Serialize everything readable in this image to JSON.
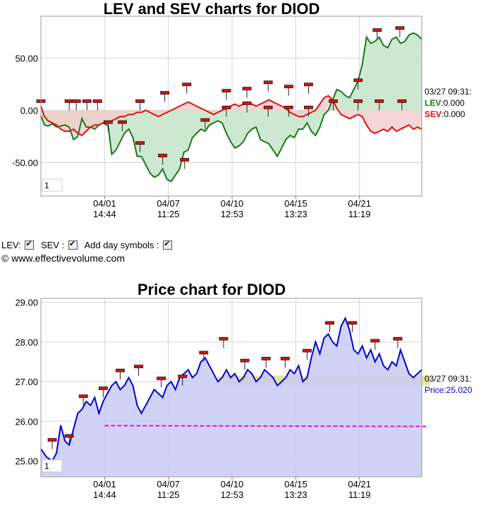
{
  "chart_data": [
    {
      "type": "line",
      "title": "LEV and SEV charts for DIOD",
      "ylim": [
        -82,
        90
      ],
      "y_ticks": [
        50,
        0,
        -50
      ],
      "y_tick_labels": [
        "50.00",
        "0.00",
        "-50.00"
      ],
      "x_ticks": [
        {
          "date": "04/01",
          "time": "14:44"
        },
        {
          "date": "04/07",
          "time": "11:25"
        },
        {
          "date": "04/10",
          "time": "12:53"
        },
        {
          "date": "04/15",
          "time": "13:23"
        },
        {
          "date": "04/21",
          "time": "11:19"
        }
      ],
      "zoom_label": "1",
      "series": [
        {
          "name": "LEV",
          "color": "#1a7a1a",
          "fill": "#c8e6cc",
          "x": [
            0,
            5,
            10,
            16,
            22,
            28,
            34,
            40,
            46,
            52,
            58,
            64,
            70,
            76,
            82,
            88,
            95,
            100,
            106,
            112,
            118,
            124,
            130,
            136,
            142,
            148,
            154,
            160,
            166,
            172,
            178,
            184,
            190,
            196,
            202,
            208,
            214,
            220,
            226,
            232,
            238,
            244,
            250,
            256,
            262,
            268,
            274,
            280,
            286,
            292,
            298,
            304,
            310,
            316,
            322,
            328,
            334,
            340,
            346,
            352,
            358,
            364,
            370,
            376,
            382,
            388,
            394,
            400,
            406,
            412,
            418,
            424,
            430,
            436,
            442,
            448,
            454,
            460,
            466,
            472,
            478,
            484,
            490,
            496,
            502,
            508,
            514,
            520,
            526,
            532,
            538
          ],
          "values": [
            -5,
            -14,
            -15,
            -13,
            -16,
            -15,
            -14,
            -16,
            -28,
            -25,
            -8,
            -16,
            -16,
            -18,
            -14,
            -12,
            -15,
            -42,
            -38,
            -30,
            -22,
            -18,
            -26,
            -44,
            -44,
            -52,
            -60,
            -64,
            -62,
            -56,
            -66,
            -68,
            -62,
            -56,
            -40,
            -38,
            -26,
            -22,
            -18,
            -20,
            -14,
            -12,
            -10,
            -12,
            -22,
            -30,
            -36,
            -34,
            -30,
            -22,
            -18,
            -16,
            -28,
            -30,
            -32,
            -38,
            -44,
            -36,
            -28,
            -24,
            -26,
            -18,
            -18,
            -12,
            -20,
            -24,
            -16,
            -4,
            0,
            10,
            20,
            18,
            14,
            12,
            20,
            28,
            44,
            70,
            64,
            66,
            70,
            62,
            60,
            68,
            70,
            64,
            66,
            72,
            74,
            72,
            68
          ]
        },
        {
          "name": "SEV",
          "color": "#e01010",
          "fill": "#f3cccc",
          "x": [
            0,
            5,
            10,
            16,
            22,
            28,
            34,
            40,
            46,
            52,
            58,
            64,
            70,
            76,
            82,
            88,
            95,
            100,
            106,
            112,
            118,
            124,
            130,
            136,
            142,
            148,
            154,
            160,
            166,
            172,
            178,
            184,
            190,
            196,
            202,
            208,
            214,
            220,
            226,
            232,
            238,
            244,
            250,
            256,
            262,
            268,
            274,
            280,
            286,
            292,
            298,
            304,
            310,
            316,
            322,
            328,
            334,
            340,
            346,
            352,
            358,
            364,
            370,
            376,
            382,
            388,
            394,
            400,
            406,
            412,
            418,
            424,
            430,
            436,
            442,
            448,
            454,
            460,
            466,
            472,
            478,
            484,
            490,
            496,
            502,
            508,
            514,
            520,
            526,
            532,
            538
          ],
          "values": [
            4,
            -6,
            -10,
            -12,
            -14,
            -18,
            -20,
            -20,
            -18,
            -22,
            -24,
            -20,
            -16,
            -14,
            -14,
            -12,
            -12,
            -10,
            -8,
            -6,
            -6,
            -4,
            -4,
            -2,
            -2,
            0,
            -2,
            -4,
            -6,
            -4,
            -2,
            0,
            2,
            4,
            6,
            8,
            6,
            4,
            2,
            0,
            -2,
            -4,
            -2,
            0,
            2,
            4,
            6,
            4,
            6,
            8,
            6,
            4,
            6,
            8,
            10,
            8,
            6,
            4,
            2,
            -2,
            -4,
            -6,
            -6,
            -4,
            -2,
            0,
            6,
            12,
            14,
            10,
            2,
            -4,
            -6,
            -8,
            -6,
            -4,
            -6,
            -14,
            -20,
            -22,
            -20,
            -18,
            -20,
            -16,
            -20,
            -18,
            -16,
            -14,
            -18,
            -16,
            -18
          ]
        }
      ],
      "day_markers_lev": [
        {
          "x": 0,
          "y": 0
        },
        {
          "x": 40,
          "y": 0
        },
        {
          "x": 65,
          "y": 0
        },
        {
          "x": 95,
          "y": -20
        },
        {
          "x": 115,
          "y": -20
        },
        {
          "x": 140,
          "y": -40
        },
        {
          "x": 172,
          "y": -52
        },
        {
          "x": 203,
          "y": -56
        },
        {
          "x": 232,
          "y": -18
        },
        {
          "x": 262,
          "y": -6
        },
        {
          "x": 291,
          "y": -2
        },
        {
          "x": 321,
          "y": -6
        },
        {
          "x": 350,
          "y": -6
        },
        {
          "x": 378,
          "y": -6
        },
        {
          "x": 448,
          "y": 20
        },
        {
          "x": 475,
          "y": 68
        },
        {
          "x": 507,
          "y": 70
        }
      ],
      "day_markers_sev": [
        {
          "x": 50,
          "y": 0
        },
        {
          "x": 80,
          "y": 0
        },
        {
          "x": 140,
          "y": 0
        },
        {
          "x": 175,
          "y": 8
        },
        {
          "x": 206,
          "y": 16
        },
        {
          "x": 262,
          "y": 10
        },
        {
          "x": 291,
          "y": 12
        },
        {
          "x": 321,
          "y": 18
        },
        {
          "x": 350,
          "y": 14
        },
        {
          "x": 378,
          "y": 16
        },
        {
          "x": 413,
          "y": 0
        },
        {
          "x": 448,
          "y": 0
        },
        {
          "x": 478,
          "y": 0
        },
        {
          "x": 510,
          "y": 0
        }
      ],
      "readout": {
        "timestamp": "03/27 09:31:",
        "lev_label": "LEV",
        "lev_value": ":0.000",
        "sev_label": "SEV",
        "sev_value": ":0.000"
      }
    },
    {
      "type": "line",
      "title": "Price chart for DIOD",
      "ylim": [
        24.6,
        29.1
      ],
      "y_ticks": [
        29,
        28,
        27,
        26,
        25
      ],
      "y_tick_labels": [
        "29.00",
        "28.00",
        "27.00",
        "26.00",
        "25.00"
      ],
      "x_ticks": [
        {
          "date": "04/01",
          "time": "14:44"
        },
        {
          "date": "04/07",
          "time": "11:25"
        },
        {
          "date": "04/10",
          "time": "12:53"
        },
        {
          "date": "04/15",
          "time": "13:23"
        },
        {
          "date": "04/21",
          "time": "11:19"
        }
      ],
      "zoom_label": "1",
      "series": [
        {
          "name": "Price",
          "color": "#0000dd",
          "fill": "#c9cbf5",
          "x": [
            0,
            8,
            16,
            22,
            28,
            34,
            40,
            46,
            52,
            58,
            64,
            70,
            76,
            82,
            88,
            94,
            100,
            106,
            112,
            118,
            124,
            130,
            136,
            142,
            148,
            154,
            160,
            166,
            172,
            178,
            184,
            190,
            196,
            202,
            208,
            214,
            220,
            226,
            232,
            238,
            244,
            250,
            256,
            262,
            268,
            274,
            280,
            286,
            292,
            298,
            304,
            310,
            316,
            322,
            328,
            334,
            340,
            346,
            352,
            358,
            364,
            370,
            376,
            382,
            388,
            394,
            400,
            406,
            412,
            418,
            424,
            430,
            436,
            442,
            448,
            454,
            460,
            466,
            472,
            478,
            484,
            490,
            496,
            502,
            508,
            514,
            520,
            526,
            532,
            538
          ],
          "values": [
            25.3,
            25.1,
            25.0,
            25.2,
            25.9,
            25.5,
            25.4,
            25.8,
            26.2,
            26.3,
            26.5,
            26.4,
            26.6,
            26.2,
            26.5,
            26.7,
            26.9,
            27.0,
            26.8,
            26.9,
            27.1,
            26.9,
            26.4,
            26.2,
            26.4,
            26.6,
            26.8,
            26.7,
            26.6,
            26.9,
            27.0,
            26.8,
            27.1,
            27.2,
            27.3,
            27.1,
            27.2,
            27.5,
            27.6,
            27.4,
            27.2,
            27.0,
            27.1,
            27.3,
            27.1,
            27.2,
            27.0,
            27.1,
            27.3,
            27.2,
            27.0,
            27.1,
            27.3,
            27.2,
            27.1,
            26.9,
            27.0,
            27.1,
            27.3,
            27.2,
            27.4,
            27.0,
            27.1,
            27.6,
            28.0,
            27.7,
            28.1,
            28.2,
            28.0,
            27.9,
            28.4,
            28.6,
            28.3,
            27.8,
            27.7,
            27.9,
            27.6,
            27.8,
            27.5,
            27.7,
            27.4,
            27.3,
            27.5,
            27.4,
            27.8,
            27.5,
            27.2,
            27.1,
            27.2,
            27.3
          ]
        }
      ],
      "support_line": {
        "start": 25.89,
        "end": 25.87,
        "color": "#ee11cc"
      },
      "band": {
        "low": 26.92,
        "high": 27.15,
        "color": "#e2e28c"
      },
      "day_markers": [
        {
          "x": 16,
          "y": 25.3
        },
        {
          "x": 40,
          "y": 25.4
        },
        {
          "x": 60,
          "y": 26.4
        },
        {
          "x": 88,
          "y": 26.6
        },
        {
          "x": 112,
          "y": 27.05
        },
        {
          "x": 138,
          "y": 27.15
        },
        {
          "x": 170,
          "y": 26.85
        },
        {
          "x": 200,
          "y": 26.9
        },
        {
          "x": 230,
          "y": 27.5
        },
        {
          "x": 258,
          "y": 27.85
        },
        {
          "x": 288,
          "y": 27.3
        },
        {
          "x": 318,
          "y": 27.35
        },
        {
          "x": 345,
          "y": 27.35
        },
        {
          "x": 376,
          "y": 27.55
        },
        {
          "x": 408,
          "y": 28.25
        },
        {
          "x": 440,
          "y": 28.25
        },
        {
          "x": 472,
          "y": 27.8
        },
        {
          "x": 504,
          "y": 27.85
        }
      ],
      "readout": {
        "timestamp": "03/27 09:31:",
        "price_label": "Price",
        "price_value": ":25.020"
      }
    }
  ],
  "controls": {
    "lev_label": "LEV:",
    "sev_label": "SEV :",
    "day_symbols_label": "Add day symbols :"
  },
  "copyright": "© www.effectivevolume.com"
}
